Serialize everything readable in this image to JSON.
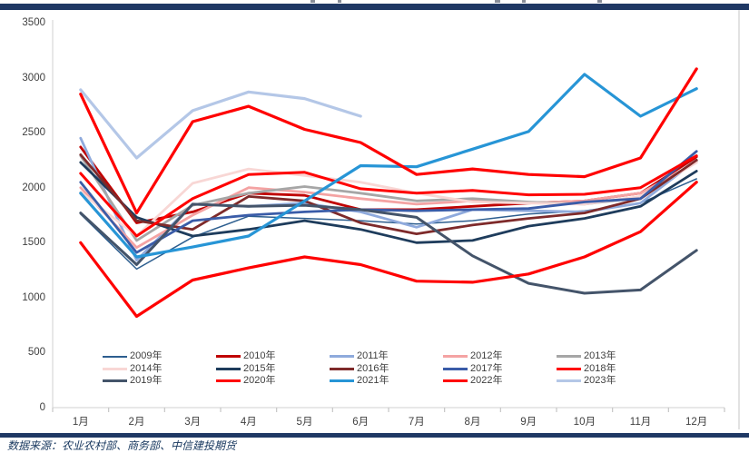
{
  "page": {
    "source_note": "数据来源：农业农村部、商务部、中信建投期货",
    "colors": {
      "divider_bar": "#1F3864",
      "axis_line": "#D9D9D9",
      "tick": "#C6C6C6",
      "axis_label": "#404040",
      "background": "#FFFFFF"
    }
  },
  "chart_data": {
    "type": "line",
    "title": "",
    "xlabel": "",
    "ylabel": "",
    "grid": false,
    "legend_position": "bottom-inside",
    "x_categories": [
      "1月",
      "2月",
      "3月",
      "4月",
      "5月",
      "6月",
      "7月",
      "8月",
      "9月",
      "10月",
      "11月",
      "12月"
    ],
    "y_axis": {
      "min": 0,
      "max": 3500,
      "step": 500,
      "tick_labels": [
        "0",
        "500",
        "1000",
        "1500",
        "2000",
        "2500",
        "3000",
        "3500"
      ]
    },
    "series": [
      {
        "name": "2009年",
        "color": "#2D5E8F",
        "width": 1.5,
        "values": [
          1760,
          1260,
          1550,
          1740,
          1720,
          1700,
          1670,
          1700,
          1760,
          1790,
          1860,
          2080
        ]
      },
      {
        "name": "2010年",
        "color": "#C00000",
        "width": 2.8,
        "values": [
          2370,
          1680,
          1780,
          1950,
          1930,
          1800,
          1800,
          1830,
          1860,
          1880,
          1950,
          2280
        ]
      },
      {
        "name": "2011年",
        "color": "#8FAADC",
        "width": 2.8,
        "values": [
          2450,
          1340,
          1850,
          1830,
          1860,
          1780,
          1640,
          1800,
          1790,
          1780,
          1860,
          2250
        ]
      },
      {
        "name": "2012年",
        "color": "#F4A3A3",
        "width": 2.8,
        "values": [
          2000,
          1455,
          1750,
          2000,
          1960,
          1900,
          1850,
          1880,
          1860,
          1880,
          1950,
          2230
        ]
      },
      {
        "name": "2013年",
        "color": "#A6A6A6",
        "width": 2.8,
        "values": [
          2290,
          1520,
          1840,
          1950,
          2010,
          1950,
          1880,
          1900,
          1870,
          1850,
          1910,
          2240
        ]
      },
      {
        "name": "2014年",
        "color": "#F8D7D5",
        "width": 2.8,
        "values": [
          1960,
          1560,
          2040,
          2170,
          2110,
          2050,
          1950,
          1870,
          1860,
          1850,
          1920,
          2230
        ]
      },
      {
        "name": "2015年",
        "color": "#1E3C5C",
        "width": 2.8,
        "values": [
          2230,
          1730,
          1560,
          1620,
          1700,
          1620,
          1500,
          1520,
          1650,
          1720,
          1830,
          2150
        ]
      },
      {
        "name": "2016年",
        "color": "#7E2A2A",
        "width": 2.8,
        "values": [
          2300,
          1700,
          1620,
          1920,
          1880,
          1680,
          1580,
          1660,
          1720,
          1770,
          1900,
          2250
        ]
      },
      {
        "name": "2017年",
        "color": "#3A5CA8",
        "width": 2.8,
        "values": [
          2050,
          1410,
          1700,
          1750,
          1780,
          1800,
          1790,
          1800,
          1810,
          1870,
          1900,
          2330
        ]
      },
      {
        "name": "2018年",
        "color": "#FF0000",
        "width": 3.0,
        "values": [
          2130,
          1560,
          1900,
          2120,
          2140,
          1990,
          1950,
          1975,
          1935,
          1940,
          2000,
          2290
        ]
      },
      {
        "name": "2019年",
        "color": "#44546A",
        "width": 3.0,
        "values": [
          1770,
          1300,
          1850,
          1830,
          1840,
          1800,
          1730,
          1380,
          1130,
          1040,
          1070,
          1430
        ]
      },
      {
        "name": "2020年",
        "color": "#FF0000",
        "width": 3.2,
        "values": [
          1500,
          830,
          1160,
          1270,
          1370,
          1300,
          1150,
          1140,
          1215,
          1370,
          1600,
          2050
        ]
      },
      {
        "name": "2021年",
        "color": "#2795D6",
        "width": 3.2,
        "values": [
          1950,
          1370,
          1460,
          1560,
          1880,
          2200,
          2190,
          2350,
          2510,
          3030,
          2650,
          2900
        ]
      },
      {
        "name": "2022年",
        "color": "#FF0000",
        "width": 3.2,
        "values": [
          2850,
          1770,
          2600,
          2740,
          2530,
          2410,
          2120,
          2170,
          2120,
          2100,
          2270,
          3080
        ]
      },
      {
        "name": "2023年",
        "color": "#B4C7E7",
        "width": 3.2,
        "values": [
          2890,
          2270,
          2700,
          2870,
          2810,
          2650
        ]
      }
    ]
  }
}
